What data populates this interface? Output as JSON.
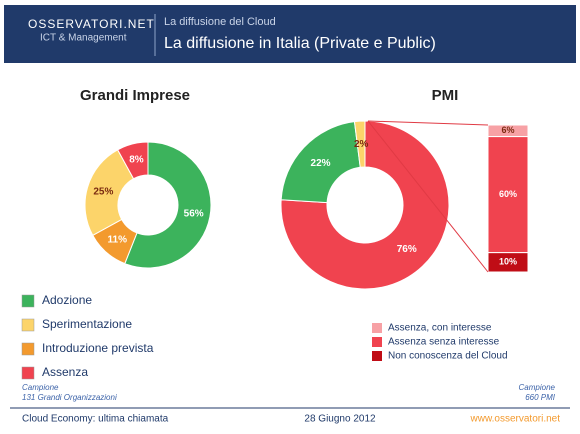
{
  "header": {
    "logo": "OSSERVATORI.NET",
    "logo_subtitle": "ICT & Management",
    "section": "La diffusione del Cloud",
    "title": "La diffusione in Italia (Private e Public)"
  },
  "chart_data": [
    {
      "type": "pie",
      "title": "Grandi Imprese",
      "categories": [
        "Adozione",
        "Sperimentazione",
        "Introduzione prevista",
        "Assenza"
      ],
      "values": [
        56,
        25,
        11,
        8
      ],
      "value_labels": [
        "56%",
        "25%",
        "11%",
        "8%"
      ],
      "colors": [
        "#3cb35c",
        "#fcd46a",
        "#f39a2e",
        "#f0434f"
      ],
      "sample_label": "Campione",
      "sample": "131 Grandi Organizzazioni"
    },
    {
      "type": "pie",
      "title": "PMI",
      "values": [
        76,
        22,
        2
      ],
      "value_labels": [
        "76%",
        "22%",
        "2%"
      ],
      "colors": [
        "#f0434f",
        "#3cb35c",
        "#fcd46a"
      ],
      "sample_label": "Campione",
      "sample": "660 PMI"
    },
    {
      "type": "bar",
      "series": [
        {
          "name": "Assenza, con interesse",
          "color": "#f7a1a5",
          "values": [
            6
          ],
          "value_labels": [
            "6%"
          ]
        },
        {
          "name": "Assenza senza interesse",
          "color": "#f0434f",
          "values": [
            60
          ],
          "value_labels": [
            "60%"
          ]
        },
        {
          "name": "Non conoscenza del Cloud",
          "color": "#c00d16",
          "values": [
            10
          ],
          "value_labels": [
            "10%"
          ]
        }
      ]
    }
  ],
  "footer": {
    "left": "Cloud Economy: ultima chiamata",
    "date": "28 Giugno 2012",
    "url": "www.osservatori.net"
  }
}
